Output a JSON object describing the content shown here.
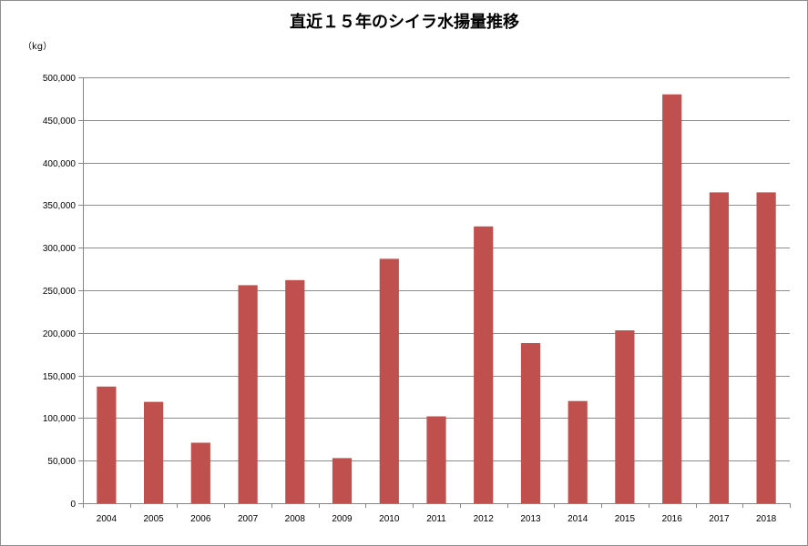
{
  "chart_data": {
    "type": "bar",
    "title": "直近１５年のシイラ水揚量推移",
    "ylabel": "（kg）",
    "xlabel": "",
    "categories": [
      "2004",
      "2005",
      "2006",
      "2007",
      "2008",
      "2009",
      "2010",
      "2011",
      "2012",
      "2013",
      "2014",
      "2015",
      "2016",
      "2017",
      "2018"
    ],
    "values": [
      137000,
      119000,
      71000,
      256000,
      262000,
      53000,
      287000,
      102000,
      325000,
      188000,
      120000,
      203000,
      480000,
      365000,
      365000
    ],
    "ylim": [
      0,
      500000
    ],
    "ytick_values": [
      0,
      50000,
      100000,
      150000,
      200000,
      250000,
      300000,
      350000,
      400000,
      450000,
      500000
    ],
    "ytick_labels": [
      "0",
      "50,000",
      "100,000",
      "150,000",
      "200,000",
      "250,000",
      "300,000",
      "350,000",
      "400,000",
      "450,000",
      "500,000"
    ],
    "grid": true,
    "bar_color": "#C0504D",
    "grid_color": "#8C8C8C",
    "axis_color": "#868686"
  }
}
